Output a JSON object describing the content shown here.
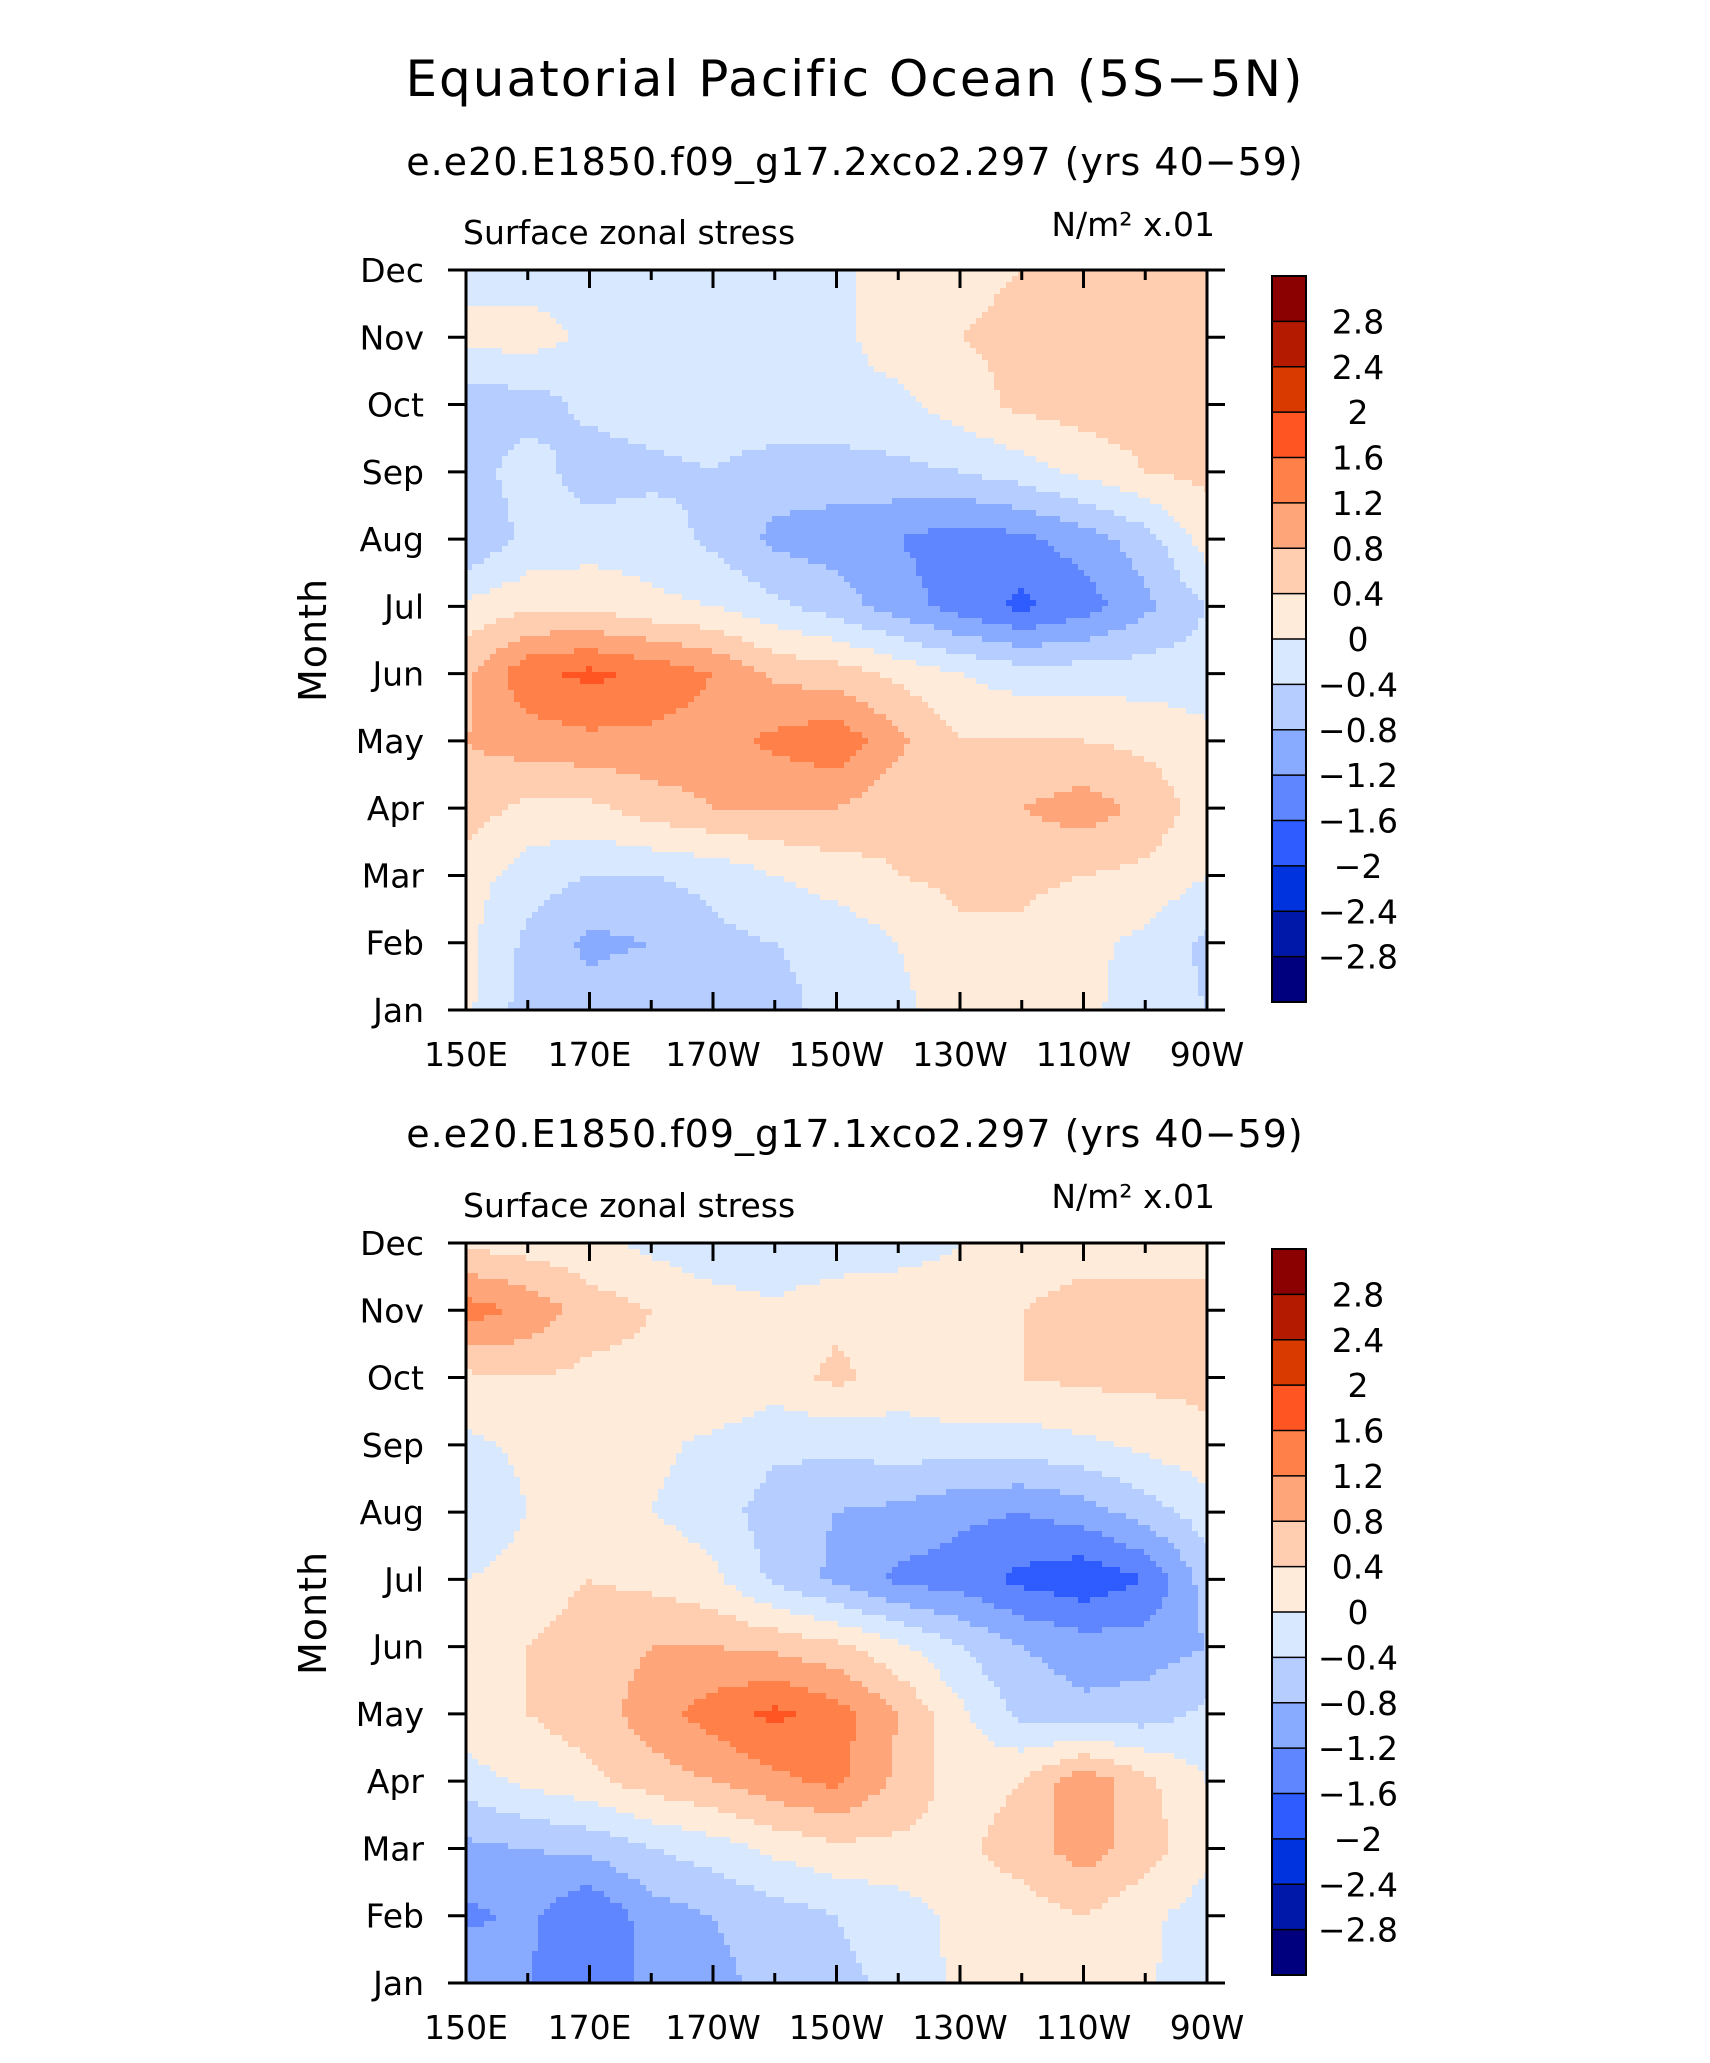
{
  "main_title": "Equatorial Pacific Ocean (5S−5N)",
  "chart_data": [
    {
      "type": "heatmap",
      "title": "e.e20.E1850.f09_g17.2xco2.297 (yrs 40−59)",
      "left_label": "Surface zonal stress",
      "units_label": "N/m² x.01",
      "xlabel": "",
      "ylabel": "Month",
      "xticklabels": [
        "150E",
        "170E",
        "170W",
        "150W",
        "130W",
        "110W",
        "90W"
      ],
      "yticklabels": [
        "Jan",
        "Feb",
        "Mar",
        "Apr",
        "May",
        "Jun",
        "Jul",
        "Aug",
        "Sep",
        "Oct",
        "Nov",
        "Dec"
      ],
      "x_lon": [
        150,
        160,
        170,
        180,
        190,
        200,
        210,
        220,
        230,
        240,
        250,
        260,
        270
      ],
      "values": [
        [
          0.1,
          -0.6,
          -0.6,
          -0.5,
          -0.4,
          -0.5,
          -0.3,
          -0.1,
          0.2,
          0.3,
          0.1,
          -0.2,
          -0.4
        ],
        [
          0.1,
          -0.5,
          -0.9,
          -0.8,
          -0.5,
          -0.4,
          -0.3,
          0.0,
          0.3,
          0.3,
          0.1,
          -0.1,
          -0.5
        ],
        [
          0.2,
          -0.2,
          -0.4,
          -0.4,
          -0.3,
          0.0,
          0.2,
          0.4,
          0.5,
          0.5,
          0.4,
          0.3,
          0.0
        ],
        [
          0.6,
          0.3,
          0.3,
          0.6,
          0.8,
          0.8,
          0.8,
          0.5,
          0.5,
          0.8,
          1.0,
          0.7,
          0.2
        ],
        [
          0.8,
          1.0,
          1.1,
          1.1,
          1.0,
          1.3,
          1.5,
          0.9,
          0.4,
          0.4,
          0.4,
          0.3,
          0.1
        ],
        [
          0.7,
          1.5,
          1.7,
          1.5,
          1.2,
          0.7,
          0.6,
          0.3,
          0.0,
          -0.2,
          -0.2,
          -0.2,
          -0.2
        ],
        [
          0.1,
          0.3,
          0.3,
          0.1,
          0.0,
          -0.3,
          -0.6,
          -1.0,
          -1.4,
          -1.7,
          -1.4,
          -0.9,
          -0.4
        ],
        [
          -0.8,
          -0.3,
          -0.2,
          -0.2,
          -0.5,
          -0.9,
          -1.0,
          -1.2,
          -1.4,
          -1.3,
          -1.0,
          -0.6,
          0.2
        ],
        [
          -0.6,
          -0.2,
          -0.6,
          -0.5,
          -0.4,
          -0.6,
          -0.6,
          -0.5,
          -0.4,
          -0.2,
          0.1,
          0.4,
          0.5
        ],
        [
          -0.6,
          -0.6,
          -0.3,
          -0.2,
          -0.2,
          -0.1,
          -0.1,
          -0.1,
          0.2,
          0.5,
          0.6,
          0.6,
          0.6
        ],
        [
          0.1,
          0.2,
          -0.1,
          -0.2,
          -0.2,
          -0.1,
          -0.1,
          0.2,
          0.4,
          0.5,
          0.6,
          0.6,
          0.6
        ],
        [
          -0.1,
          -0.2,
          -0.2,
          -0.2,
          -0.2,
          -0.2,
          -0.1,
          0.2,
          0.3,
          0.4,
          0.5,
          0.5,
          0.4
        ]
      ],
      "levels": [
        -2.8,
        -2.4,
        -2,
        -1.6,
        -1.2,
        -0.8,
        -0.4,
        0,
        0.4,
        0.8,
        1.2,
        1.6,
        2,
        2.4,
        2.8
      ]
    },
    {
      "type": "heatmap",
      "title": "e.e20.E1850.f09_g17.1xco2.297 (yrs 40−59)",
      "left_label": "Surface zonal stress",
      "units_label": "N/m² x.01",
      "xlabel": "",
      "ylabel": "Month",
      "xticklabels": [
        "150E",
        "170E",
        "170W",
        "150W",
        "130W",
        "110W",
        "90W"
      ],
      "yticklabels": [
        "Jan",
        "Feb",
        "Mar",
        "Apr",
        "May",
        "Jun",
        "Jul",
        "Aug",
        "Sep",
        "Oct",
        "Nov",
        "Dec"
      ],
      "x_lon": [
        150,
        160,
        170,
        180,
        190,
        200,
        210,
        220,
        230,
        240,
        250,
        260,
        270
      ],
      "values": [
        [
          -0.8,
          -1.2,
          -1.5,
          -1.1,
          -0.9,
          -0.7,
          -0.5,
          -0.3,
          0.1,
          0.2,
          0.2,
          0.1,
          -0.4
        ],
        [
          -1.3,
          -1.1,
          -1.6,
          -1.0,
          -0.8,
          -0.6,
          -0.4,
          -0.2,
          0.1,
          0.2,
          0.4,
          0.1,
          -0.2
        ],
        [
          -0.9,
          -0.8,
          -0.7,
          -0.4,
          -0.2,
          0.1,
          0.3,
          0.3,
          0.3,
          0.6,
          1.0,
          0.6,
          0.1
        ],
        [
          -0.2,
          0.1,
          0.3,
          0.6,
          0.8,
          1.1,
          1.3,
          0.7,
          0.2,
          0.4,
          1.1,
          0.5,
          0.0
        ],
        [
          0.3,
          0.4,
          0.6,
          1.0,
          1.4,
          1.7,
          1.4,
          0.8,
          0.1,
          -0.5,
          -0.7,
          -0.6,
          -0.3
        ],
        [
          0.3,
          0.4,
          0.6,
          0.8,
          0.8,
          0.7,
          0.5,
          0.1,
          -0.4,
          -0.8,
          -1.0,
          -1.0,
          -0.8
        ],
        [
          0.0,
          0.2,
          0.4,
          0.3,
          0.1,
          -0.5,
          -0.9,
          -1.3,
          -1.4,
          -1.7,
          -1.9,
          -1.6,
          -0.6
        ],
        [
          -0.4,
          0.0,
          0.1,
          0.0,
          -0.2,
          -0.6,
          -0.8,
          -0.9,
          -1.1,
          -1.2,
          -1.0,
          -0.6,
          -0.2
        ],
        [
          -0.1,
          0.1,
          0.1,
          0.1,
          -0.1,
          -0.3,
          -0.3,
          -0.2,
          -0.2,
          -0.2,
          -0.1,
          0.1,
          0.3
        ],
        [
          0.3,
          0.4,
          0.3,
          0.3,
          0.4,
          0.2,
          0.5,
          0.2,
          0.4,
          0.4,
          0.5,
          0.5,
          0.5
        ],
        [
          1.4,
          1.1,
          0.6,
          0.4,
          0.2,
          0.1,
          0.3,
          0.3,
          0.2,
          0.4,
          0.6,
          0.6,
          0.5
        ],
        [
          0.3,
          0.2,
          0.1,
          -0.1,
          -0.3,
          -0.4,
          -0.3,
          -0.2,
          0.0,
          0.1,
          0.2,
          0.2,
          0.3
        ]
      ],
      "levels": [
        -2.8,
        -2.4,
        -2,
        -1.6,
        -1.2,
        -0.8,
        -0.4,
        0,
        0.4,
        0.8,
        1.2,
        1.6,
        2,
        2.4,
        2.8
      ]
    }
  ],
  "colorbar": {
    "labels": [
      "2.8",
      "2.4",
      "2",
      "1.6",
      "1.2",
      "0.8",
      "0.4",
      "0",
      "−0.4",
      "−0.8",
      "−1.2",
      "−1.6",
      "−2",
      "−2.4",
      "−2.8"
    ],
    "colors": [
      "#8b0000",
      "#b31a00",
      "#d93a00",
      "#ff5522",
      "#ff8049",
      "#ffa57a",
      "#ffcdb0",
      "#ffebd9",
      "#d8e8ff",
      "#b5cdff",
      "#88aaff",
      "#5f86ff",
      "#2e5cff",
      "#0033dd",
      "#0018aa",
      "#00007f"
    ]
  }
}
